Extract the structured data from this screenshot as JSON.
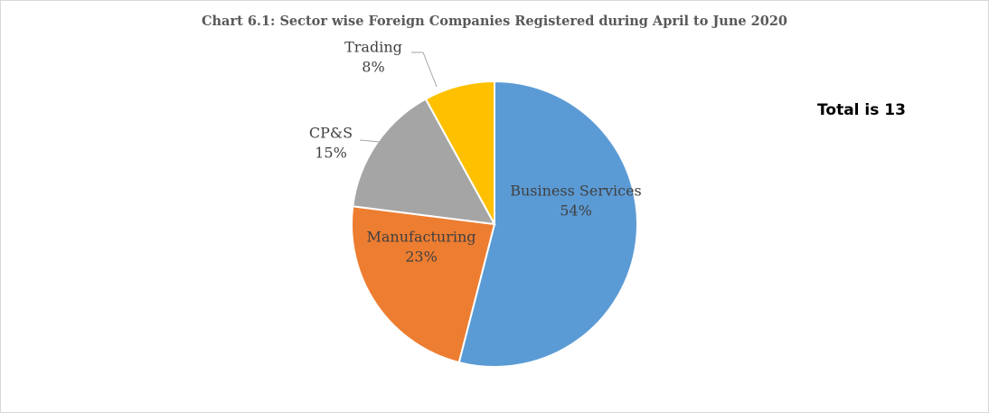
{
  "chart_data": {
    "type": "pie",
    "title": "Chart 6.1: Sector wise Foreign Companies Registered during April to June 2020",
    "categories": [
      "Business Services",
      "Manufacturing",
      "CP&S",
      "Trading"
    ],
    "values": [
      54,
      23,
      15,
      8
    ],
    "value_labels": [
      "54%",
      "23%",
      "15%",
      "8%"
    ],
    "colors": [
      "#5b9bd5",
      "#ed7d31",
      "#a5a5a5",
      "#ffc000"
    ],
    "annotation": "Total is 13"
  }
}
